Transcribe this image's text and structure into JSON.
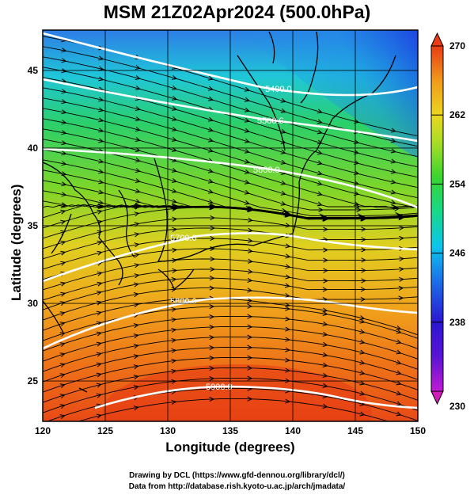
{
  "title": "MSM 21Z02Apr2024 (500.0hPa)",
  "xlabel": "Longitude (degrees)",
  "ylabel": "Latitude  (degrees)",
  "credit_line1": "Drawing by DCL (https://www.gfd-dennou.org/library/dcl/)",
  "credit_line2": "Data from http://database.rish.kyoto-u.ac.jp/arch/jmadata/",
  "map": {
    "xlim": [
      120,
      150
    ],
    "ylim": [
      22.4,
      47.6
    ],
    "x_ticks": [
      "120",
      "125",
      "130",
      "135",
      "140",
      "145",
      "150"
    ],
    "y_ticks": [
      "25",
      "30",
      "35",
      "40",
      "45"
    ],
    "grid": true
  },
  "colorbar": {
    "min": 230,
    "max": 270,
    "tick_labels": [
      "270",
      "262",
      "254",
      "246",
      "238",
      "230"
    ],
    "colors": [
      "#c21bd4",
      "#7a14d6",
      "#2b16d1",
      "#1553e6",
      "#0ba4f0",
      "#0ee0d6",
      "#16d98c",
      "#25d33e",
      "#67d629",
      "#b4df27",
      "#e9d91f",
      "#f0a51b",
      "#ee6f18",
      "#ea3b16"
    ]
  },
  "contours": [
    {
      "label": "5400.0"
    },
    {
      "label": "5500.0"
    },
    {
      "label": "5600.0"
    },
    {
      "label": "5700.0"
    },
    {
      "label": "5800.0"
    },
    {
      "label": "5900.0"
    }
  ]
}
